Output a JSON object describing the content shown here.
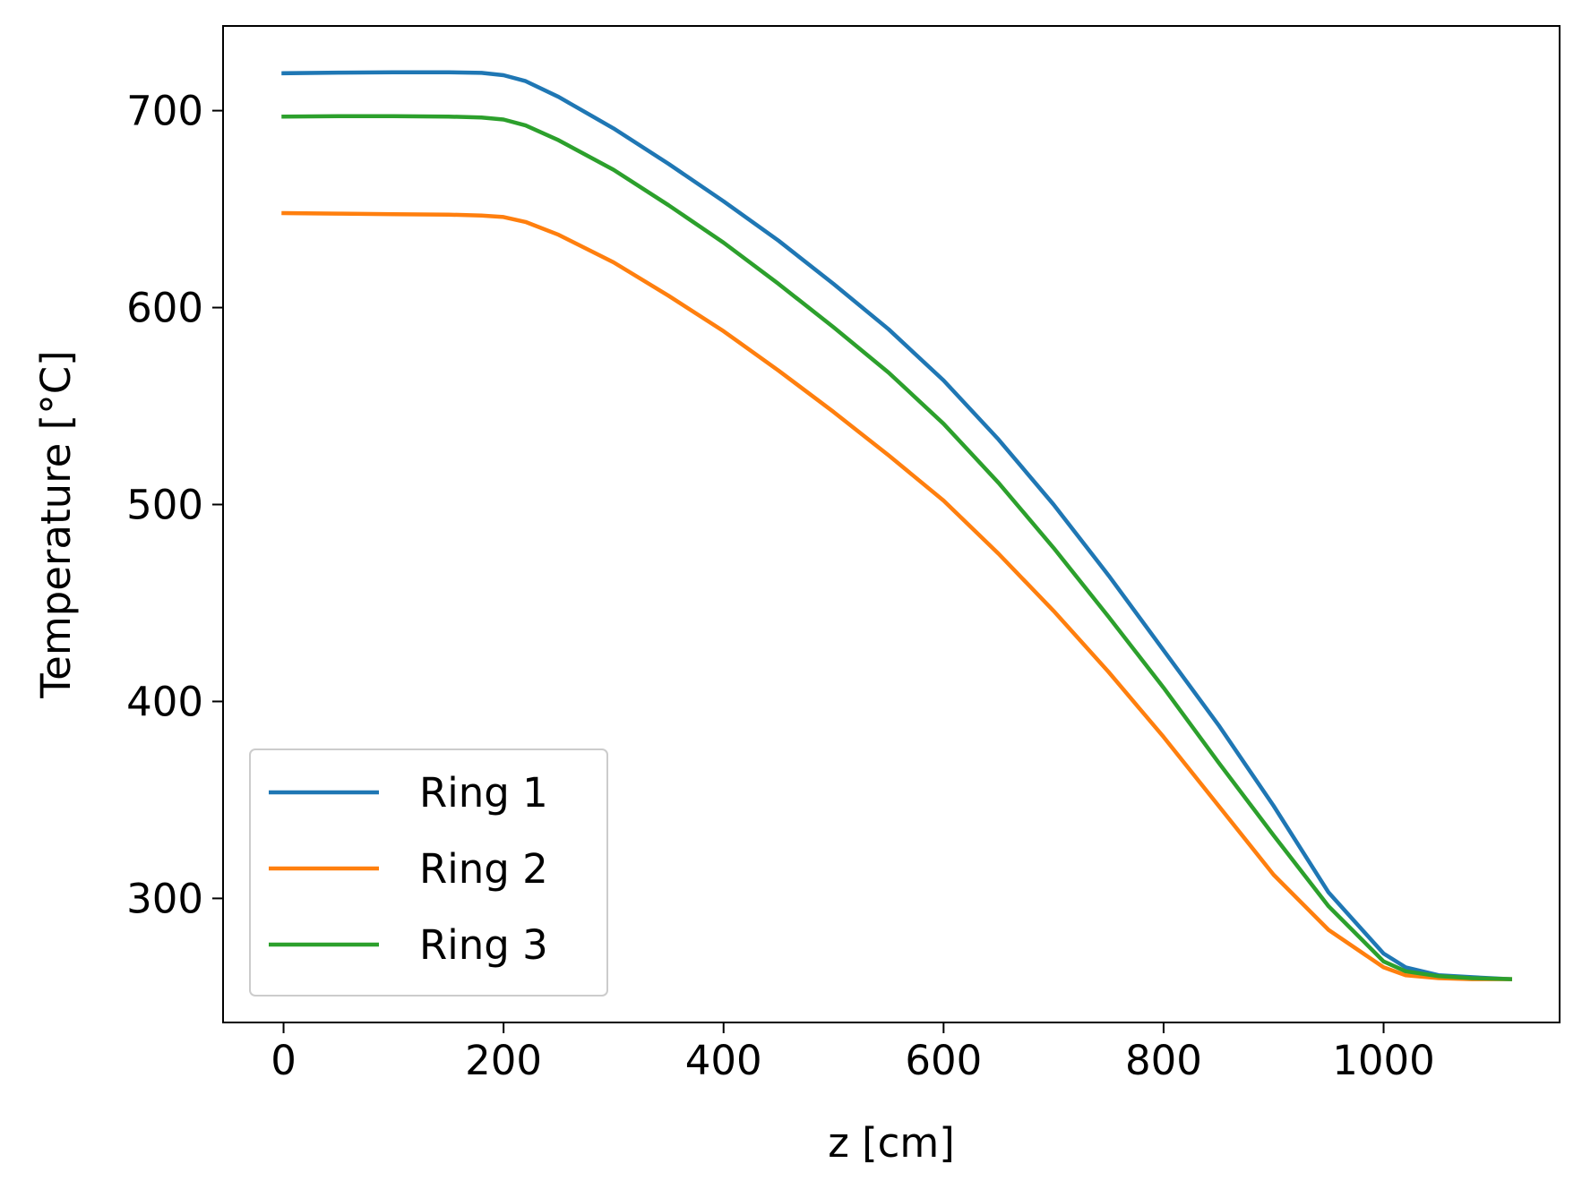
{
  "chart_data": {
    "type": "line",
    "title": "",
    "xlabel": "z [cm]",
    "ylabel": "Temperature [°C]",
    "xlim": [
      -55,
      1160
    ],
    "ylim": [
      237,
      743
    ],
    "xticks": [
      0,
      200,
      400,
      600,
      800,
      1000
    ],
    "yticks": [
      300,
      400,
      500,
      600,
      700
    ],
    "xtick_labels": [
      "0",
      "200",
      "400",
      "600",
      "800",
      "1000"
    ],
    "ytick_labels": [
      "300",
      "400",
      "500",
      "600",
      "700"
    ],
    "grid": false,
    "legend_position": "lower-left",
    "series": [
      {
        "name": "Ring 1",
        "color": "#1f77b4",
        "x": [
          0,
          50,
          100,
          150,
          180,
          200,
          220,
          250,
          300,
          350,
          400,
          450,
          500,
          550,
          600,
          650,
          700,
          750,
          800,
          850,
          900,
          950,
          1000,
          1020,
          1050,
          1080,
          1115
        ],
        "y": [
          719,
          719.3,
          719.5,
          719.5,
          719.2,
          718,
          715,
          707,
          691,
          673,
          654,
          634,
          612,
          589,
          563,
          533,
          500,
          464,
          426,
          388,
          347,
          303,
          272,
          265,
          261,
          260,
          259
        ]
      },
      {
        "name": "Ring 2",
        "color": "#ff7f0e",
        "x": [
          0,
          50,
          100,
          150,
          180,
          200,
          220,
          250,
          300,
          350,
          400,
          450,
          500,
          550,
          600,
          650,
          700,
          750,
          800,
          850,
          900,
          950,
          1000,
          1020,
          1050,
          1080,
          1115
        ],
        "y": [
          648,
          647.7,
          647.4,
          647.2,
          646.7,
          646,
          643.5,
          637,
          623,
          606,
          588,
          568,
          547,
          525,
          502,
          475,
          446,
          415,
          382,
          347,
          312,
          284,
          265,
          261,
          259.5,
          259,
          259
        ]
      },
      {
        "name": "Ring 3",
        "color": "#2ca02c",
        "x": [
          0,
          50,
          100,
          150,
          180,
          200,
          220,
          250,
          300,
          350,
          400,
          450,
          500,
          550,
          600,
          650,
          700,
          750,
          800,
          850,
          900,
          950,
          1000,
          1020,
          1050,
          1080,
          1115
        ],
        "y": [
          697,
          697.2,
          697.2,
          697,
          696.5,
          695.5,
          692.5,
          685,
          670,
          652,
          633,
          612,
          590,
          567,
          541,
          511,
          478,
          443,
          407,
          369,
          332,
          296,
          268,
          263,
          260.5,
          259.5,
          259
        ]
      }
    ]
  }
}
